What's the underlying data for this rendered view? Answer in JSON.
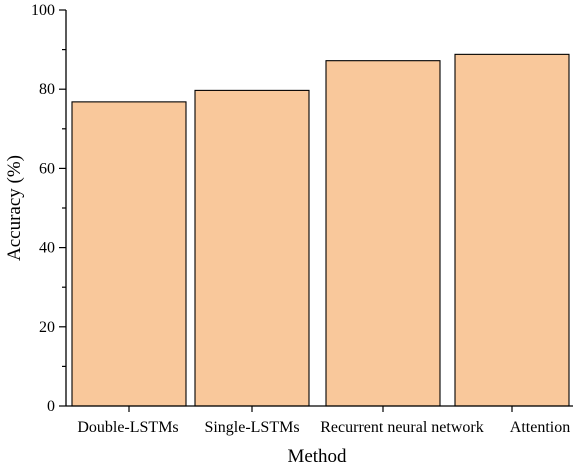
{
  "chart_data": {
    "type": "bar",
    "title": "",
    "xlabel": "Method",
    "ylabel": "Accuracy (%)",
    "categories": [
      "Double-LSTMs",
      "Single-LSTMs",
      "Recurrent neural network",
      "Attention"
    ],
    "values": [
      76.8,
      79.7,
      87.2,
      88.8
    ],
    "ylim": [
      0,
      100
    ],
    "yticks": [
      0,
      20,
      40,
      60,
      80,
      100
    ],
    "grid": false,
    "legend": "none",
    "colors": {
      "bar_fill": "#F9C89B",
      "bar_stroke": "#000000"
    }
  }
}
